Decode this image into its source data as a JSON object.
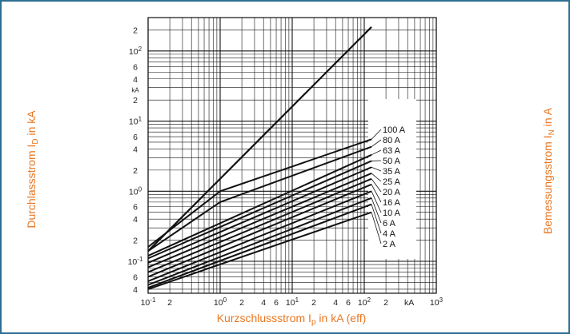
{
  "colors": {
    "frame_border": "#2d6e93",
    "axis_title": "#e87722",
    "curves": "#111111",
    "grid": "#111111"
  },
  "chart_data": {
    "type": "line",
    "scale": "log-log",
    "xlabel": "Kurzschlussstrom Ip in kA (eff)",
    "ylabel": "Durchlassstrom ID in kA",
    "y2label": "Bemessungsstrom IN in A",
    "xlim": [
      0.1,
      1000
    ],
    "ylim": [
      0.035,
      300
    ],
    "x_tick_labels": [
      "10-1",
      "2",
      "10^0",
      "2",
      "4",
      "6",
      "10^1",
      "2",
      "4",
      "6",
      "10^2",
      "2",
      "kA",
      "10^3"
    ],
    "y_tick_labels": [
      "2",
      "10^2",
      "6",
      "4",
      "kA",
      "2",
      "10^1",
      "6",
      "4",
      "2",
      "10^0",
      "6",
      "4",
      "2",
      "10^-1",
      "6",
      "4"
    ],
    "grid": true,
    "legend": "right side labels",
    "reference_line": {
      "x": [
        0.1,
        126
      ],
      "y": [
        0.14,
        220
      ]
    },
    "series": [
      {
        "name": "100 A",
        "x": [
          0.1,
          1.0,
          126
        ],
        "y": [
          0.16,
          1.0,
          5.5
        ]
      },
      {
        "name": "80 A",
        "x": [
          0.1,
          1.0,
          126
        ],
        "y": [
          0.14,
          0.7,
          4.3
        ]
      },
      {
        "name": "63 A",
        "x": [
          0.1,
          126
        ],
        "y": [
          0.12,
          3.3
        ]
      },
      {
        "name": "50 A",
        "x": [
          0.1,
          126
        ],
        "y": [
          0.11,
          2.7
        ]
      },
      {
        "name": "35 A",
        "x": [
          0.1,
          126
        ],
        "y": [
          0.095,
          2.2
        ]
      },
      {
        "name": "25 A",
        "x": [
          0.1,
          126
        ],
        "y": [
          0.082,
          1.8
        ]
      },
      {
        "name": "20 A",
        "x": [
          0.1,
          126
        ],
        "y": [
          0.07,
          1.5
        ]
      },
      {
        "name": "16 A",
        "x": [
          0.1,
          126
        ],
        "y": [
          0.06,
          1.25
        ]
      },
      {
        "name": "10 A",
        "x": [
          0.1,
          126
        ],
        "y": [
          0.052,
          1.0
        ]
      },
      {
        "name": "6 A",
        "x": [
          0.1,
          126
        ],
        "y": [
          0.046,
          0.8
        ]
      },
      {
        "name": "4 A",
        "x": [
          0.1,
          126
        ],
        "y": [
          0.042,
          0.65
        ]
      },
      {
        "name": "2 A",
        "x": [
          0.1,
          126
        ],
        "y": [
          0.04,
          0.5
        ]
      }
    ]
  }
}
